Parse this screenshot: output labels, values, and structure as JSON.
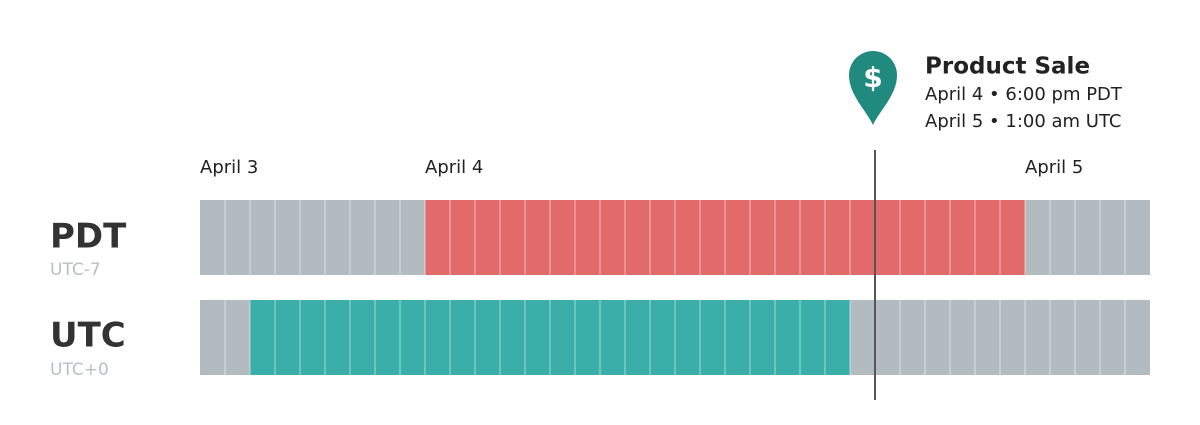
{
  "rows": [
    {
      "zone": "PDT",
      "offset": "UTC-7"
    },
    {
      "zone": "UTC",
      "offset": "UTC+0"
    }
  ],
  "days": [
    "April 3",
    "April 4",
    "April 5"
  ],
  "event": {
    "icon": "$",
    "title": "Product Sale",
    "lines": [
      "April 4 • 6:00 pm PDT",
      "April 5 • 1:00 am UTC"
    ]
  }
}
